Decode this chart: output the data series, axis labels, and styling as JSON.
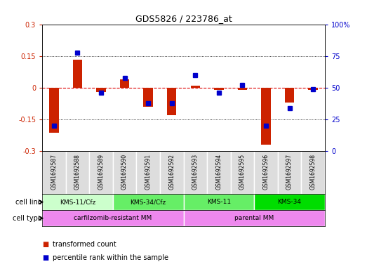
{
  "title": "GDS5826 / 223786_at",
  "samples": [
    "GSM1692587",
    "GSM1692588",
    "GSM1692589",
    "GSM1692590",
    "GSM1692591",
    "GSM1692592",
    "GSM1692593",
    "GSM1692594",
    "GSM1692595",
    "GSM1692596",
    "GSM1692597",
    "GSM1692598"
  ],
  "transformed_count": [
    -0.215,
    0.135,
    -0.02,
    0.04,
    -0.09,
    -0.13,
    0.01,
    -0.01,
    -0.01,
    -0.27,
    -0.07,
    -0.01
  ],
  "percentile_rank": [
    20,
    78,
    46,
    58,
    38,
    38,
    60,
    46,
    52,
    20,
    34,
    49
  ],
  "ylim_left": [
    -0.3,
    0.3
  ],
  "ylim_right": [
    0,
    100
  ],
  "yticks_left": [
    -0.3,
    -0.15,
    0,
    0.15,
    0.3
  ],
  "yticks_right": [
    0,
    25,
    50,
    75,
    100
  ],
  "red_color": "#cc2200",
  "blue_color": "#0000cc",
  "dashed_red_color": "#dd0000",
  "cell_line_data": [
    {
      "label": "KMS-11/Cfz",
      "start": 0,
      "end": 3,
      "color": "#ccffcc"
    },
    {
      "label": "KMS-34/Cfz",
      "start": 3,
      "end": 6,
      "color": "#66ee66"
    },
    {
      "label": "KMS-11",
      "start": 6,
      "end": 9,
      "color": "#66ee66"
    },
    {
      "label": "KMS-34",
      "start": 9,
      "end": 12,
      "color": "#00dd00"
    }
  ],
  "cell_type_data": [
    {
      "label": "carfilzomib-resistant MM",
      "start": 0,
      "end": 6,
      "color": "#ee88ee"
    },
    {
      "label": "parental MM",
      "start": 6,
      "end": 12,
      "color": "#ee88ee"
    }
  ],
  "legend_red": "transformed count",
  "legend_blue": "percentile rank within the sample",
  "bg_color": "#ffffff"
}
